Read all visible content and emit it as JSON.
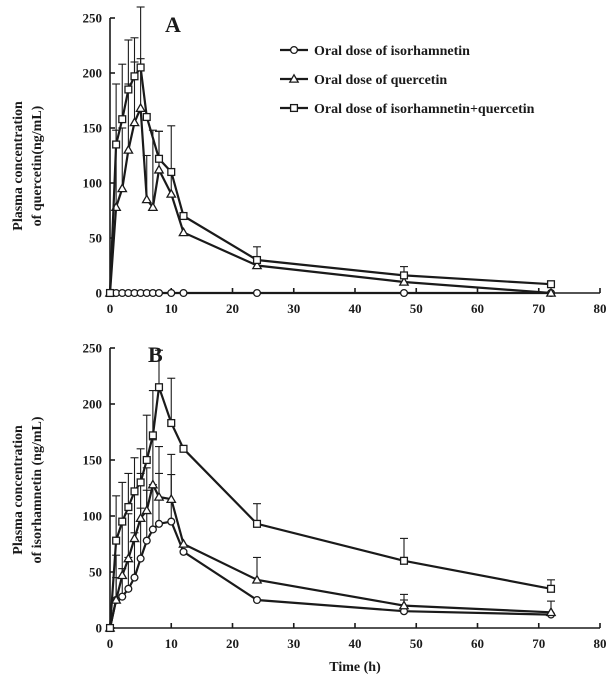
{
  "chart_data": [
    {
      "type": "line",
      "panel_label": "A",
      "xlabel": "",
      "ylabel": [
        "Plasma concentration",
        "of quercetin(ng/mL)"
      ],
      "xlim": [
        0,
        80
      ],
      "ylim": [
        0,
        250
      ],
      "xticks": [
        "0",
        "10",
        "20",
        "30",
        "40",
        "50",
        "60",
        "70",
        "80"
      ],
      "yticks": [
        "0",
        "50",
        "100",
        "150",
        "200",
        "250"
      ],
      "legend_position": "top-right",
      "series": [
        {
          "name": "Oral dose of isorhamnetin",
          "marker": "circle",
          "x": [
            0,
            1,
            2,
            3,
            4,
            5,
            6,
            7,
            8,
            10,
            12,
            24,
            48,
            72
          ],
          "y": [
            0,
            0,
            0,
            0,
            0,
            0,
            0,
            0,
            0,
            0,
            0,
            0,
            0,
            0
          ],
          "err": [
            0,
            0,
            0,
            0,
            0,
            0,
            0,
            0,
            0,
            0,
            0,
            0,
            0,
            0
          ]
        },
        {
          "name": "Oral dose of quercetin",
          "marker": "triangle",
          "x": [
            0,
            1,
            2,
            3,
            4,
            5,
            6,
            7,
            8,
            10,
            12,
            24,
            48,
            72
          ],
          "y": [
            0,
            78,
            95,
            130,
            155,
            168,
            85,
            78,
            112,
            90,
            55,
            25,
            10,
            0
          ],
          "err": [
            0,
            70,
            55,
            60,
            55,
            45,
            40,
            70,
            35,
            62,
            0,
            0,
            0,
            0
          ]
        },
        {
          "name": "Oral dose of isorhamnetin+quercetin",
          "marker": "square",
          "x": [
            0,
            1,
            2,
            3,
            4,
            5,
            6,
            8,
            10,
            12,
            24,
            48,
            72
          ],
          "y": [
            0,
            135,
            158,
            185,
            197,
            205,
            160,
            122,
            110,
            70,
            30,
            16,
            8
          ],
          "err": [
            0,
            55,
            50,
            45,
            35,
            55,
            0,
            25,
            0,
            0,
            12,
            8,
            0
          ]
        }
      ]
    },
    {
      "type": "line",
      "panel_label": "B",
      "xlabel": "Time (h)",
      "ylabel": [
        "Plasma concentration",
        "of isorhamnetin (ng/mL)"
      ],
      "xlim": [
        0,
        80
      ],
      "ylim": [
        0,
        250
      ],
      "xticks": [
        "0",
        "10",
        "20",
        "30",
        "40",
        "50",
        "60",
        "70",
        "80"
      ],
      "yticks": [
        "0",
        "50",
        "100",
        "150",
        "200",
        "250"
      ],
      "series": [
        {
          "name": "Oral dose of isorhamnetin",
          "marker": "circle",
          "x": [
            0,
            1,
            2,
            3,
            4,
            5,
            6,
            7,
            8,
            10,
            12,
            24,
            48,
            72
          ],
          "y": [
            0,
            25,
            28,
            35,
            45,
            62,
            78,
            88,
            93,
            95,
            68,
            25,
            15,
            12
          ],
          "err": [
            0,
            20,
            25,
            28,
            40,
            45,
            45,
            40,
            45,
            42,
            0,
            0,
            10,
            0
          ]
        },
        {
          "name": "Oral dose of quercetin",
          "marker": "triangle",
          "x": [
            0,
            1,
            2,
            3,
            4,
            5,
            6,
            7,
            8,
            10,
            12,
            24,
            48,
            72
          ],
          "y": [
            0,
            25,
            47,
            62,
            80,
            98,
            105,
            128,
            117,
            115,
            75,
            43,
            20,
            14
          ],
          "err": [
            0,
            40,
            45,
            40,
            40,
            40,
            38,
            40,
            45,
            40,
            0,
            20,
            10,
            10
          ]
        },
        {
          "name": "Oral dose of isorhamnetin+quercetin",
          "marker": "square",
          "x": [
            0,
            1,
            2,
            3,
            4,
            5,
            6,
            7,
            8,
            10,
            12,
            24,
            48,
            72
          ],
          "y": [
            0,
            78,
            95,
            108,
            122,
            130,
            150,
            172,
            215,
            183,
            160,
            93,
            60,
            35
          ],
          "err": [
            0,
            40,
            35,
            30,
            30,
            30,
            40,
            40,
            33,
            40,
            0,
            18,
            20,
            8
          ]
        }
      ]
    }
  ]
}
